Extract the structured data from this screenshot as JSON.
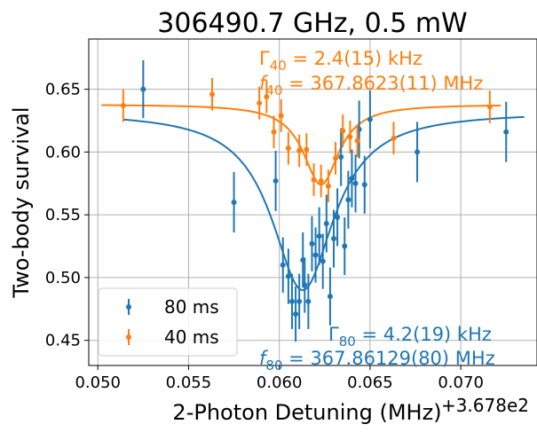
{
  "chart_data": {
    "type": "scatter",
    "title": "306490.7 GHz, 0.5 mW",
    "xlabel": "2-Photon Detuning (MHz)",
    "ylabel": "Two-body survival",
    "x_offset_label": "+3.678e2",
    "xlim": [
      0.0495,
      0.0742
    ],
    "ylim": [
      0.43,
      0.69
    ],
    "xticks": [
      0.05,
      0.055,
      0.06,
      0.065,
      0.07
    ],
    "xtick_labels": [
      "0.050",
      "0.055",
      "0.060",
      "0.065",
      "0.070"
    ],
    "yticks": [
      0.45,
      0.5,
      0.55,
      0.6,
      0.65
    ],
    "ytick_labels": [
      "0.45",
      "0.50",
      "0.55",
      "0.60",
      "0.65"
    ],
    "grid": true,
    "legend": {
      "position": "lower-left",
      "entries": [
        {
          "label": "80 ms",
          "color": "#1f77b4"
        },
        {
          "label": "40 ms",
          "color": "#ff7f0e"
        }
      ]
    },
    "annotations": [
      {
        "id": "g40",
        "sym": "Γ",
        "sub": "40",
        "rest": " = 2.4(15) kHz",
        "color": "#ff7f0e"
      },
      {
        "id": "f40",
        "sym": "f",
        "sub": "40",
        "rest": " = 367.8623(11) MHz",
        "color": "#ff7f0e"
      },
      {
        "id": "g80",
        "sym": "Γ",
        "sub": "80",
        "rest": " = 4.2(19) kHz",
        "color": "#1f77b4"
      },
      {
        "id": "f80",
        "sym": "f",
        "sub": "80",
        "rest": " = 367.86129(80) MHz",
        "color": "#1f77b4"
      }
    ],
    "series": [
      {
        "name": "80 ms",
        "color": "#1f77b4",
        "points": [
          {
            "x": 0.0525,
            "y": 0.65,
            "err": 0.023
          },
          {
            "x": 0.0575,
            "y": 0.56,
            "err": 0.024
          },
          {
            "x": 0.0598,
            "y": 0.577,
            "err": 0.024
          },
          {
            "x": 0.0602,
            "y": 0.51,
            "err": 0.022
          },
          {
            "x": 0.0605,
            "y": 0.501,
            "err": 0.022
          },
          {
            "x": 0.0607,
            "y": 0.481,
            "err": 0.022
          },
          {
            "x": 0.0609,
            "y": 0.471,
            "err": 0.022
          },
          {
            "x": 0.0611,
            "y": 0.481,
            "err": 0.022
          },
          {
            "x": 0.0613,
            "y": 0.514,
            "err": 0.022
          },
          {
            "x": 0.0614,
            "y": 0.494,
            "err": 0.022
          },
          {
            "x": 0.0616,
            "y": 0.481,
            "err": 0.022
          },
          {
            "x": 0.0618,
            "y": 0.527,
            "err": 0.022
          },
          {
            "x": 0.062,
            "y": 0.518,
            "err": 0.022
          },
          {
            "x": 0.0622,
            "y": 0.533,
            "err": 0.023
          },
          {
            "x": 0.0624,
            "y": 0.513,
            "err": 0.022
          },
          {
            "x": 0.0626,
            "y": 0.543,
            "err": 0.023
          },
          {
            "x": 0.0628,
            "y": 0.485,
            "err": 0.023
          },
          {
            "x": 0.063,
            "y": 0.531,
            "err": 0.023
          },
          {
            "x": 0.0632,
            "y": 0.548,
            "err": 0.023
          },
          {
            "x": 0.0634,
            "y": 0.596,
            "err": 0.023
          },
          {
            "x": 0.0636,
            "y": 0.525,
            "err": 0.023
          },
          {
            "x": 0.0638,
            "y": 0.562,
            "err": 0.023
          },
          {
            "x": 0.064,
            "y": 0.579,
            "err": 0.023
          },
          {
            "x": 0.0642,
            "y": 0.575,
            "err": 0.023
          },
          {
            "x": 0.0644,
            "y": 0.618,
            "err": 0.023
          },
          {
            "x": 0.0647,
            "y": 0.574,
            "err": 0.023
          },
          {
            "x": 0.065,
            "y": 0.626,
            "err": 0.023
          },
          {
            "x": 0.0676,
            "y": 0.6,
            "err": 0.024
          },
          {
            "x": 0.0725,
            "y": 0.616,
            "err": 0.024
          }
        ],
        "fit": {
          "model": "lorentzian",
          "baseline": 0.632,
          "depth": 0.142,
          "center": 0.06129,
          "fwhm": 0.0042,
          "xrange": [
            0.0514,
            0.0735
          ]
        }
      },
      {
        "name": "40 ms",
        "color": "#ff7f0e",
        "points": [
          {
            "x": 0.0514,
            "y": 0.637,
            "err": 0.013
          },
          {
            "x": 0.0563,
            "y": 0.646,
            "err": 0.013
          },
          {
            "x": 0.0589,
            "y": 0.639,
            "err": 0.013
          },
          {
            "x": 0.0593,
            "y": 0.644,
            "err": 0.013
          },
          {
            "x": 0.0597,
            "y": 0.616,
            "err": 0.013
          },
          {
            "x": 0.0601,
            "y": 0.629,
            "err": 0.013
          },
          {
            "x": 0.0605,
            "y": 0.603,
            "err": 0.013
          },
          {
            "x": 0.0611,
            "y": 0.601,
            "err": 0.013
          },
          {
            "x": 0.0615,
            "y": 0.602,
            "err": 0.013
          },
          {
            "x": 0.0619,
            "y": 0.578,
            "err": 0.013
          },
          {
            "x": 0.0623,
            "y": 0.577,
            "err": 0.013
          },
          {
            "x": 0.0627,
            "y": 0.573,
            "err": 0.013
          },
          {
            "x": 0.0631,
            "y": 0.595,
            "err": 0.013
          },
          {
            "x": 0.0635,
            "y": 0.617,
            "err": 0.013
          },
          {
            "x": 0.0639,
            "y": 0.612,
            "err": 0.013
          },
          {
            "x": 0.0643,
            "y": 0.609,
            "err": 0.013
          },
          {
            "x": 0.0663,
            "y": 0.611,
            "err": 0.013
          },
          {
            "x": 0.0716,
            "y": 0.636,
            "err": 0.013
          }
        ],
        "fit": {
          "model": "lorentzian",
          "baseline": 0.638,
          "depth": 0.064,
          "center": 0.0623,
          "fwhm": 0.0024,
          "xrange": [
            0.0502,
            0.0722
          ]
        }
      }
    ]
  }
}
